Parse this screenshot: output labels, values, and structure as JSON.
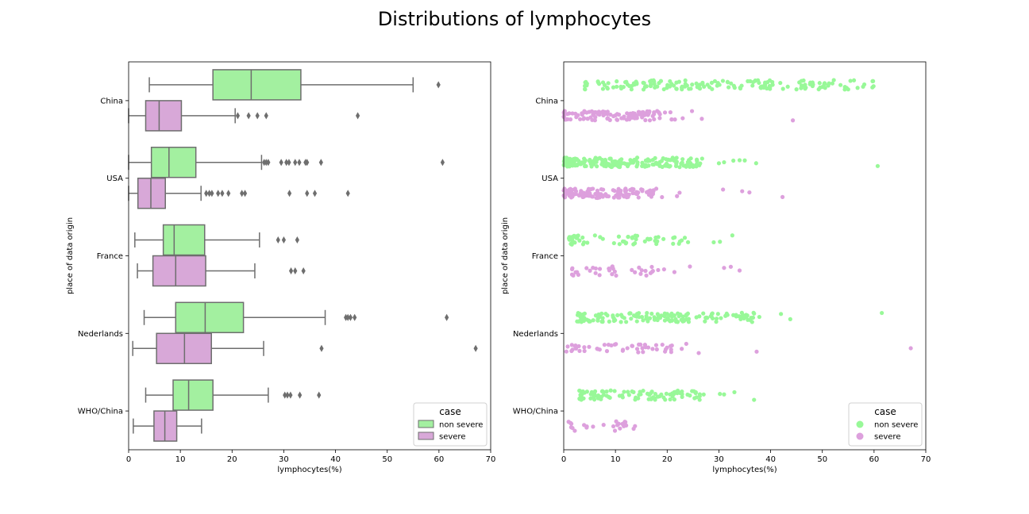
{
  "title": "Distributions of lymphocytes",
  "colors": {
    "non_severe": "#a3f0a0",
    "severe": "#d8a8d8",
    "non_severe_pt": "#98f898",
    "severe_pt": "#dda0dd",
    "edge": "#6e6e6e"
  },
  "chart_data": [
    {
      "type": "boxplot",
      "orientation": "horizontal",
      "xlabel": "lymphocytes(%)",
      "ylabel": "place of data origin",
      "xlim": [
        0,
        70
      ],
      "xticks": [
        0,
        10,
        20,
        30,
        40,
        50,
        60,
        70
      ],
      "categories": [
        "China",
        "USA",
        "France",
        "Nederlands",
        "WHO/China"
      ],
      "legend": {
        "title": "case",
        "position": "lower right",
        "entries": [
          "non severe",
          "severe"
        ]
      },
      "series": [
        {
          "name": "non severe",
          "boxes": [
            {
              "category": "China",
              "whislo": 4,
              "q1": 16.3,
              "med": 23.7,
              "q3": 33.3,
              "whishi": 55,
              "fliers": [
                59.9
              ]
            },
            {
              "category": "USA",
              "whislo": 0,
              "q1": 4.4,
              "med": 7.8,
              "q3": 13,
              "whishi": 25.7,
              "fliers": [
                26.2,
                26.6,
                27,
                29.5,
                30.5,
                31,
                32.2,
                33,
                34.2,
                34.5,
                37.2,
                60.7
              ]
            },
            {
              "category": "France",
              "whislo": 1.2,
              "q1": 6.7,
              "med": 8.8,
              "q3": 14.7,
              "whishi": 25.3,
              "fliers": [
                28.9,
                30,
                32.6
              ]
            },
            {
              "category": "Nederlands",
              "whislo": 3,
              "q1": 9.1,
              "med": 14.8,
              "q3": 22.2,
              "whishi": 38,
              "fliers": [
                42,
                42.4,
                42.9,
                43.7,
                61.5
              ]
            },
            {
              "category": "WHO/China",
              "whislo": 3.3,
              "q1": 8.6,
              "med": 11.6,
              "q3": 16.3,
              "whishi": 27,
              "fliers": [
                30.2,
                30.7,
                31.3,
                33.1,
                36.8
              ]
            }
          ]
        },
        {
          "name": "severe",
          "boxes": [
            {
              "category": "China",
              "whislo": 0,
              "q1": 3.3,
              "med": 5.9,
              "q3": 10.2,
              "whishi": 20.6,
              "fliers": [
                21.1,
                23.2,
                24.9,
                26.6,
                44.3
              ]
            },
            {
              "category": "USA",
              "whislo": 0,
              "q1": 1.8,
              "med": 4.3,
              "q3": 7.1,
              "whishi": 14,
              "fliers": [
                15,
                15.6,
                16.1,
                17.3,
                18.1,
                19.3,
                21.9,
                22.5,
                31.1,
                34.5,
                36,
                42.4
              ]
            },
            {
              "category": "France",
              "whislo": 1.7,
              "q1": 4.7,
              "med": 9.1,
              "q3": 14.9,
              "whishi": 24.4,
              "fliers": [
                31.4,
                32.2,
                33.8
              ]
            },
            {
              "category": "Nederlands",
              "whislo": 0.8,
              "q1": 5.4,
              "med": 10.8,
              "q3": 16,
              "whishi": 26.1,
              "fliers": [
                37.3,
                67.1
              ]
            },
            {
              "category": "WHO/China",
              "whislo": 0.9,
              "q1": 4.9,
              "med": 7,
              "q3": 9.3,
              "whishi": 14.1,
              "fliers": []
            }
          ]
        }
      ]
    },
    {
      "type": "scatter",
      "subtype": "stripplot",
      "xlabel": "lymphocytes(%)",
      "ylabel": "place of data origin",
      "xlim": [
        0,
        70
      ],
      "xticks": [
        0,
        10,
        20,
        30,
        40,
        50,
        60,
        70
      ],
      "categories": [
        "China",
        "USA",
        "France",
        "Nederlands",
        "WHO/China"
      ],
      "legend": {
        "title": "case",
        "position": "lower right",
        "entries": [
          "non severe",
          "severe"
        ]
      },
      "series": [
        {
          "name": "non severe",
          "groups": [
            {
              "category": "China",
              "count": 160,
              "min": 4,
              "max": 60,
              "extra": [
                45,
                46.8,
                50,
                54.7,
                55,
                59.9
              ]
            },
            {
              "category": "USA",
              "count": 200,
              "min": 0,
              "max": 27,
              "extra": [
                30,
                31,
                32.8,
                34,
                35,
                37.2,
                60.7
              ]
            },
            {
              "category": "France",
              "count": 60,
              "min": 1,
              "max": 26,
              "extra": [
                29,
                30.2,
                32.6
              ]
            },
            {
              "category": "Nederlands",
              "count": 150,
              "min": 2.5,
              "max": 38,
              "extra": [
                42,
                43.8,
                61.5
              ]
            },
            {
              "category": "WHO/China",
              "count": 100,
              "min": 3,
              "max": 28,
              "extra": [
                30.2,
                31,
                33,
                36.8
              ]
            }
          ]
        },
        {
          "name": "severe",
          "groups": [
            {
              "category": "China",
              "count": 110,
              "min": 0,
              "max": 21,
              "extra": [
                21.5,
                23,
                24.8,
                26.7,
                44.3
              ]
            },
            {
              "category": "USA",
              "count": 130,
              "min": 0,
              "max": 18,
              "extra": [
                19,
                21.9,
                22.4,
                30.8,
                34.5,
                35.9,
                42.3
              ]
            },
            {
              "category": "France",
              "count": 35,
              "min": 1.5,
              "max": 20,
              "extra": [
                21.4,
                24.4,
                31,
                32.3,
                34
              ]
            },
            {
              "category": "Nederlands",
              "count": 50,
              "min": 0.5,
              "max": 24,
              "extra": [
                26.1,
                37.3,
                67.1
              ]
            },
            {
              "category": "WHO/China",
              "count": 25,
              "min": 0.8,
              "max": 14.2,
              "extra": []
            }
          ]
        }
      ]
    }
  ]
}
